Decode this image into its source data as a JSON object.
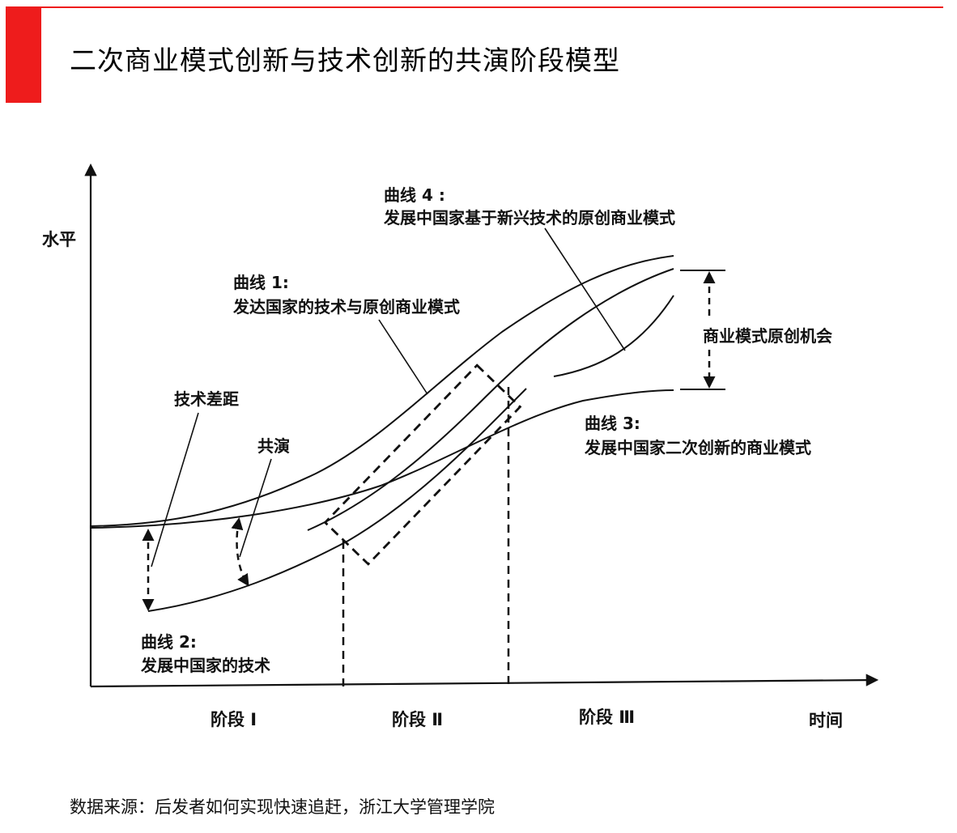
{
  "header": {
    "title": "二次商业模式创新与技术创新的共演阶段模型"
  },
  "diagram": {
    "y_axis_label": "水平",
    "x_axis_label": "时间",
    "stages": [
      "阶段 Ⅰ",
      "阶段 Ⅱ",
      "阶段 Ⅲ"
    ],
    "curves": [
      {
        "title": "曲线 1:",
        "desc": "发达国家的技术与原创商业模式"
      },
      {
        "title": "曲线 2:",
        "desc": "发展中国家的技术"
      },
      {
        "title": "曲线 3:",
        "desc": "发展中国家二次创新的商业模式"
      },
      {
        "title": "曲线 4 :",
        "desc": "发展中国家基于新兴技术的原创商业模式"
      }
    ],
    "annotations": {
      "tech_gap": "技术差距",
      "coevolution": "共演",
      "opportunity": "商业模式原创机会"
    }
  },
  "footer": {
    "source": "数据来源：后发者如何实现快速追赶，浙江大学管理学院"
  }
}
